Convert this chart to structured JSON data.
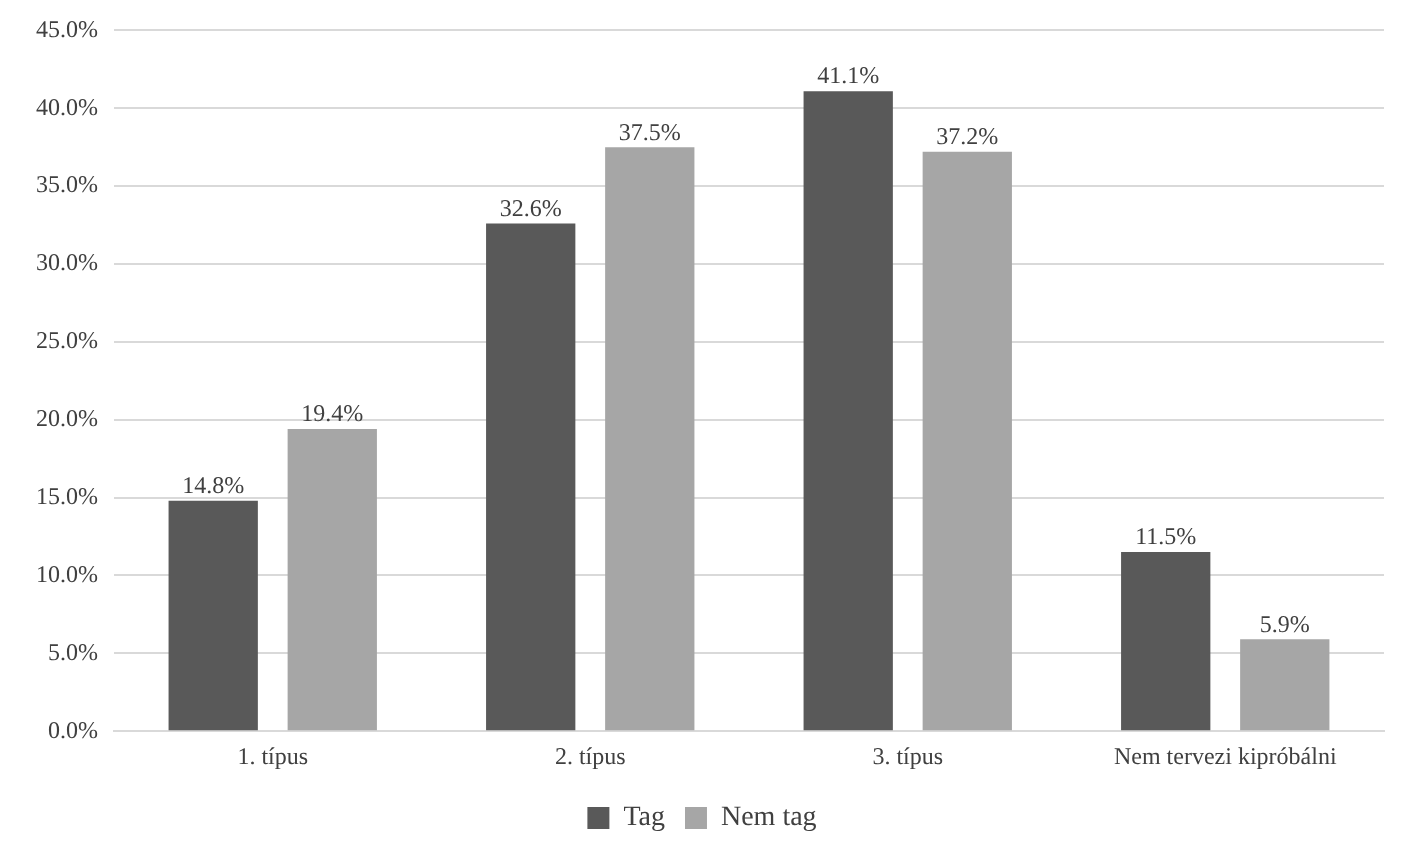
{
  "chart_data": {
    "type": "bar",
    "categories": [
      "1. típus",
      "2. típus",
      "3. típus",
      "Nem tervezi kipróbálni"
    ],
    "series": [
      {
        "name": "Tag",
        "color": "#595959",
        "values": [
          14.8,
          32.6,
          41.1,
          11.5
        ],
        "value_labels": [
          "14.8%",
          "32.6%",
          "41.1%",
          "11.5%"
        ]
      },
      {
        "name": "Nem tag",
        "color": "#a6a6a6",
        "values": [
          19.4,
          37.5,
          37.2,
          5.9
        ],
        "value_labels": [
          "19.4%",
          "37.5%",
          "37.2%",
          "5.9%"
        ]
      }
    ],
    "ylim": [
      0,
      45
    ],
    "yticks": [
      {
        "value": 0,
        "label": "0.0%"
      },
      {
        "value": 5,
        "label": "5.0%"
      },
      {
        "value": 10,
        "label": "10.0%"
      },
      {
        "value": 15,
        "label": "15.0%"
      },
      {
        "value": 20,
        "label": "20.0%"
      },
      {
        "value": 25,
        "label": "25.0%"
      },
      {
        "value": 30,
        "label": "30.0%"
      },
      {
        "value": 35,
        "label": "35.0%"
      },
      {
        "value": 40,
        "label": "40.0%"
      },
      {
        "value": 45,
        "label": "45.0%"
      }
    ],
    "grid": "y",
    "legend": "bottom"
  }
}
